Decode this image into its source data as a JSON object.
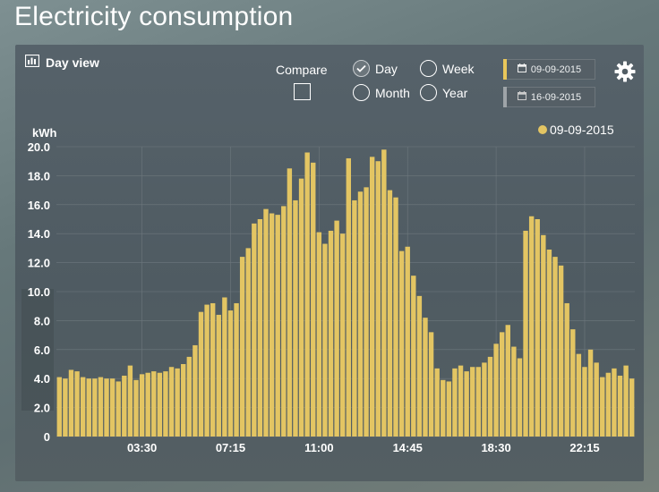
{
  "page": {
    "title": "Electricity consumption"
  },
  "panel": {
    "view_title": "Day view",
    "compare_label": "Compare",
    "compare_checked": false,
    "view_options": [
      {
        "label": "Day",
        "checked": true
      },
      {
        "label": "Week",
        "checked": false
      },
      {
        "label": "Month",
        "checked": false
      },
      {
        "label": "Year",
        "checked": false
      }
    ],
    "dates": [
      {
        "label": "09-09-2015",
        "accent": "#e9c75a"
      },
      {
        "label": "16-09-2015",
        "accent": "#9ea4a8"
      }
    ],
    "icons": {
      "view": "bar-chart-icon",
      "calendar": "calendar-icon",
      "settings": "gear-icon",
      "check": "check-icon"
    }
  },
  "chart_data": {
    "type": "bar",
    "ylabel": "kWh",
    "ylim": [
      0,
      20
    ],
    "y_ticks": [
      "0",
      "2.0",
      "4.0",
      "6.0",
      "8.0",
      "10.0",
      "12.0",
      "14.0",
      "16.0",
      "18.0",
      "20.0"
    ],
    "x_ticks": [
      "03:30",
      "07:15",
      "11:00",
      "14:45",
      "18:30",
      "22:15"
    ],
    "x_tick_index": [
      14,
      29,
      44,
      59,
      74,
      89
    ],
    "grid": true,
    "legend": "top-right",
    "series": [
      {
        "name": "09-09-2015",
        "color": "#e3c563",
        "values": [
          4.1,
          4.0,
          4.6,
          4.5,
          4.1,
          4.0,
          4.0,
          4.1,
          4.0,
          4.0,
          3.8,
          4.2,
          4.9,
          3.9,
          4.3,
          4.4,
          4.5,
          4.4,
          4.5,
          4.8,
          4.7,
          5.0,
          5.5,
          6.3,
          8.6,
          9.1,
          9.2,
          8.4,
          9.6,
          8.7,
          9.2,
          12.4,
          13.0,
          14.7,
          15.0,
          15.7,
          15.4,
          15.3,
          15.9,
          18.5,
          16.3,
          17.8,
          19.6,
          18.9,
          14.1,
          13.3,
          14.2,
          14.9,
          14.0,
          19.2,
          16.3,
          16.9,
          17.2,
          19.3,
          19.0,
          19.8,
          17.0,
          16.5,
          12.8,
          13.1,
          11.1,
          9.7,
          8.2,
          7.2,
          4.7,
          3.9,
          3.8,
          4.7,
          4.9,
          4.5,
          4.8,
          4.8,
          5.1,
          5.5,
          6.4,
          7.2,
          7.7,
          6.2,
          5.4,
          14.2,
          15.2,
          15.0,
          13.9,
          12.9,
          12.4,
          11.8,
          9.2,
          7.4,
          5.7,
          4.8,
          6.0,
          5.1,
          4.1,
          4.4,
          4.7,
          4.2,
          4.9,
          4.0
        ]
      }
    ]
  }
}
